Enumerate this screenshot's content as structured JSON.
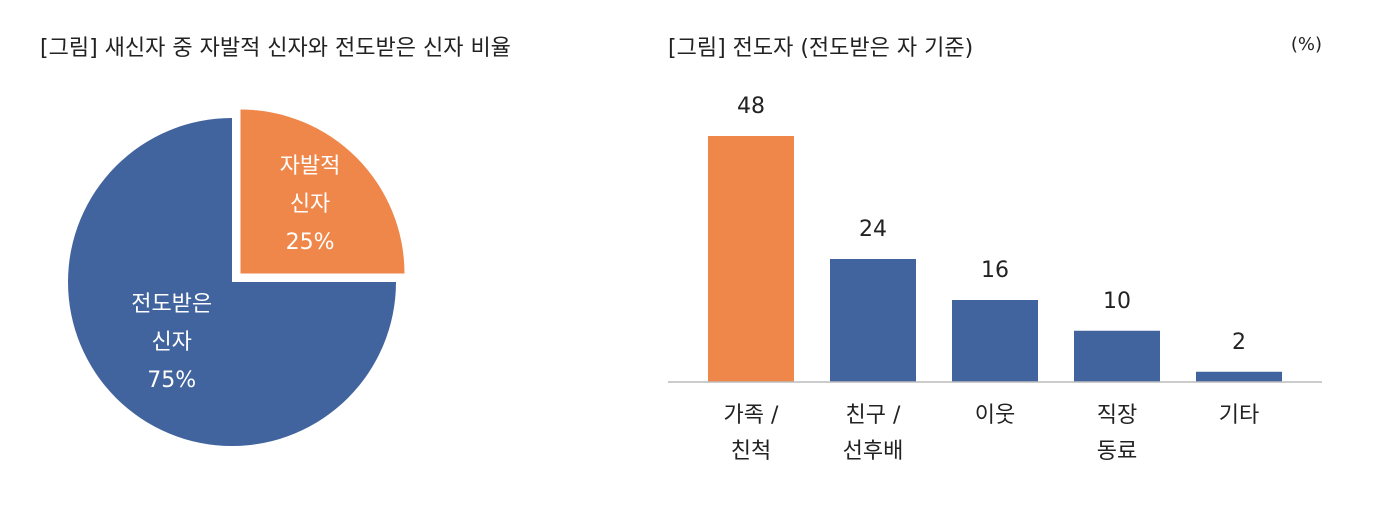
{
  "chart_data": [
    {
      "type": "pie",
      "title": "[그림] 새신자 중 자발적 신자와 전도받은 신자 비율",
      "categories": [
        "자발적 신자",
        "전도받은 신자"
      ],
      "values": [
        25,
        75
      ],
      "value_labels": [
        "25%",
        "75%"
      ],
      "colors": [
        "#f0874a",
        "#42649e"
      ],
      "explode": [
        true,
        false
      ]
    },
    {
      "type": "bar",
      "title": "[그림] 전도자 (전도받은 자 기준)",
      "unit_label": "(%)",
      "categories": [
        "가족 /친척",
        "친구 /선후배",
        "이웃",
        "직장 동료",
        "기타"
      ],
      "values": [
        48,
        24,
        16,
        10,
        2
      ],
      "colors": [
        "#f0874a",
        "#42649e",
        "#42649e",
        "#42649e",
        "#42649e"
      ],
      "ylim": [
        0,
        48
      ]
    }
  ]
}
